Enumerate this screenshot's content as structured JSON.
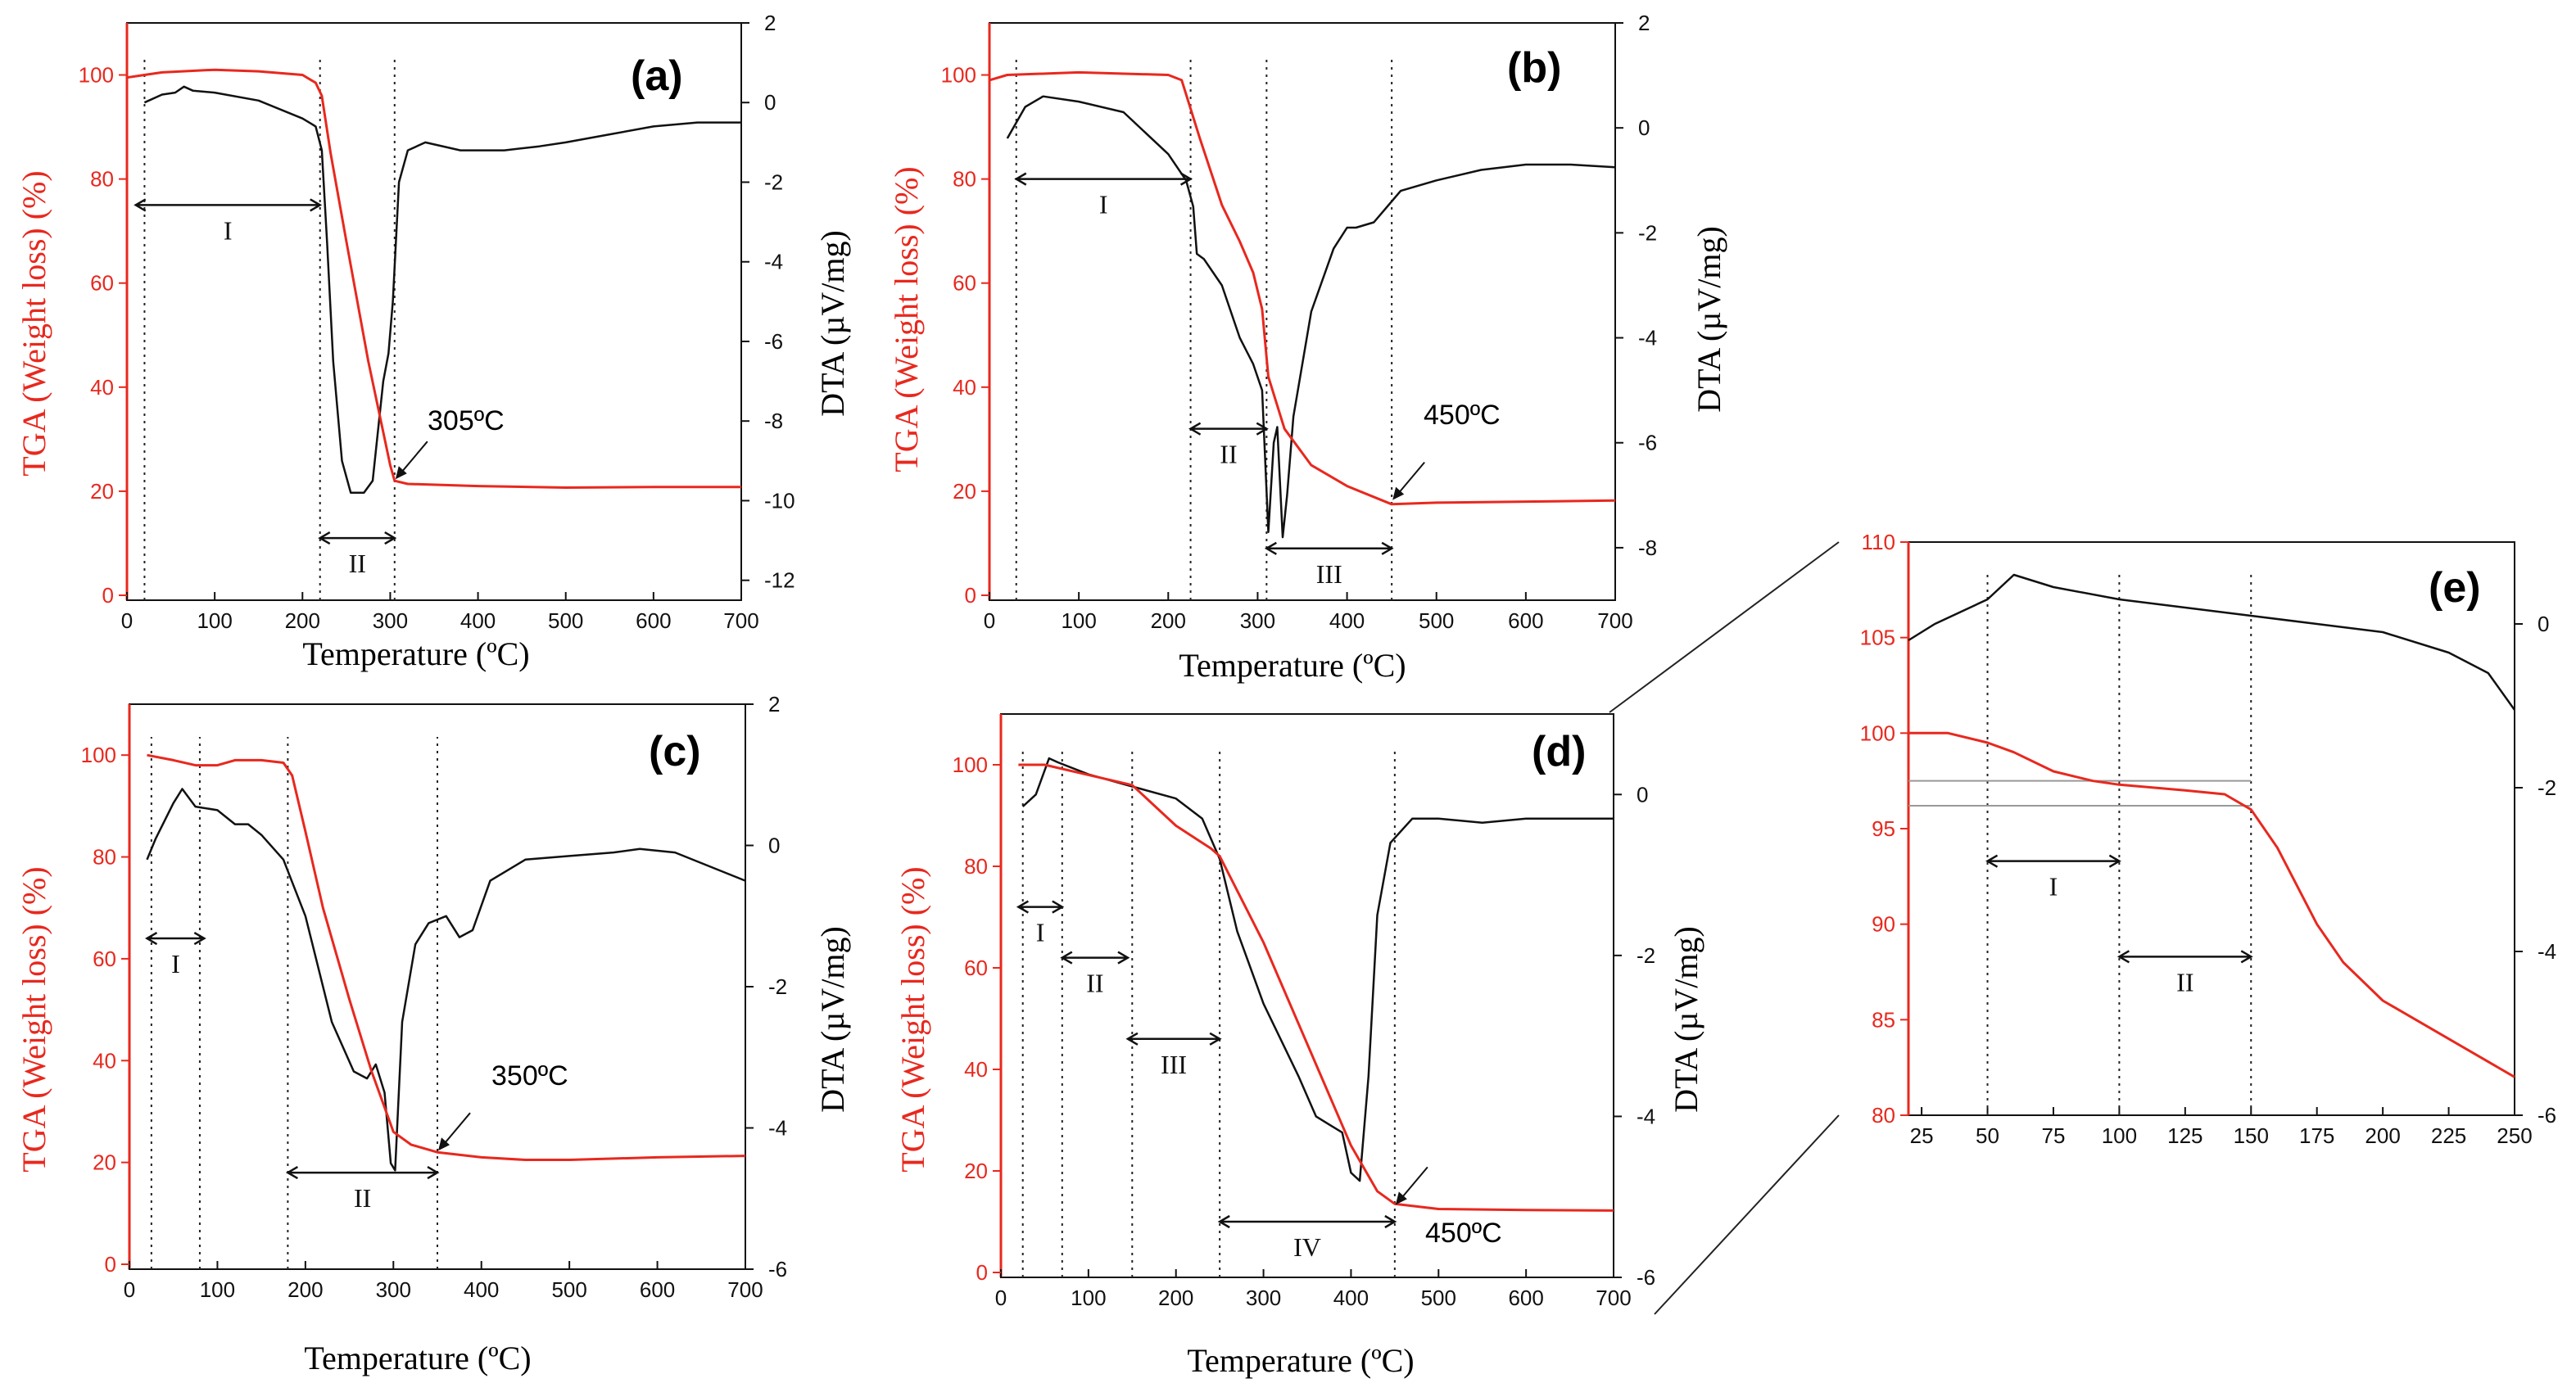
{
  "colors": {
    "tga": "#e8281e",
    "dta": "#111111",
    "guide": "#999999"
  },
  "chart_data": [
    {
      "id": "a",
      "type": "line",
      "label": "(a)",
      "xlabel": "Temperature (ºC)",
      "ylabel": "TGA (Weight loss) (%)",
      "y2label": "DTA (µV/mg)",
      "xlim": [
        0,
        700
      ],
      "ylim": [
        0,
        110
      ],
      "y2lim": [
        -12.5,
        2
      ],
      "xticks": [
        0,
        100,
        200,
        300,
        400,
        500,
        600,
        700
      ],
      "yticks": [
        0,
        20,
        40,
        60,
        80,
        100
      ],
      "y2ticks": [
        -12,
        -10,
        -8,
        -6,
        -4,
        -2,
        0,
        2
      ],
      "tga": [
        [
          0,
          99.5
        ],
        [
          20,
          100
        ],
        [
          40,
          100.5
        ],
        [
          100,
          101
        ],
        [
          150,
          100.7
        ],
        [
          200,
          100
        ],
        [
          215,
          98.5
        ],
        [
          222,
          96
        ],
        [
          232,
          85
        ],
        [
          250,
          68
        ],
        [
          275,
          45
        ],
        [
          300,
          25
        ],
        [
          305,
          22
        ],
        [
          320,
          21.4
        ],
        [
          400,
          21
        ],
        [
          500,
          20.7
        ],
        [
          600,
          20.8
        ],
        [
          700,
          20.8
        ]
      ],
      "dta": [
        [
          20,
          0
        ],
        [
          40,
          0.2
        ],
        [
          55,
          0.25
        ],
        [
          65,
          0.4
        ],
        [
          75,
          0.3
        ],
        [
          100,
          0.25
        ],
        [
          150,
          0.05
        ],
        [
          200,
          -0.4
        ],
        [
          215,
          -0.6
        ],
        [
          222,
          -1.2
        ],
        [
          228,
          -3.5
        ],
        [
          235,
          -6.5
        ],
        [
          245,
          -9
        ],
        [
          255,
          -9.8
        ],
        [
          270,
          -9.8
        ],
        [
          280,
          -9.5
        ],
        [
          292,
          -7
        ],
        [
          298,
          -6.3
        ],
        [
          303,
          -5
        ],
        [
          310,
          -2
        ],
        [
          320,
          -1.2
        ],
        [
          340,
          -1
        ],
        [
          380,
          -1.2
        ],
        [
          430,
          -1.2
        ],
        [
          470,
          -1.1
        ],
        [
          500,
          -1
        ],
        [
          550,
          -0.8
        ],
        [
          600,
          -0.6
        ],
        [
          650,
          -0.5
        ],
        [
          700,
          -0.5
        ]
      ],
      "guides": [
        20,
        220,
        305
      ],
      "regions": [
        {
          "label": "I",
          "from": 10,
          "to": 220,
          "y": 75
        },
        {
          "label": "II",
          "from": 220,
          "to": 305,
          "y": 11
        }
      ],
      "annotation": {
        "text": "305ºC",
        "at": [
          305,
          22
        ]
      }
    },
    {
      "id": "b",
      "type": "line",
      "label": "(b)",
      "xlabel": "Temperature (ºC)",
      "ylabel": "TGA (Weight loss) (%)",
      "y2label": "DTA (µV/mg)",
      "xlim": [
        0,
        700
      ],
      "ylim": [
        0,
        110
      ],
      "y2lim": [
        -9,
        2
      ],
      "xticks": [
        0,
        100,
        200,
        300,
        400,
        500,
        600,
        700
      ],
      "yticks": [
        0,
        20,
        40,
        60,
        80,
        100
      ],
      "y2ticks": [
        -8,
        -6,
        -4,
        -2,
        0,
        2
      ],
      "tga": [
        [
          0,
          99
        ],
        [
          20,
          100
        ],
        [
          100,
          100.5
        ],
        [
          200,
          100
        ],
        [
          215,
          99
        ],
        [
          235,
          88
        ],
        [
          260,
          75
        ],
        [
          280,
          68
        ],
        [
          295,
          62
        ],
        [
          305,
          55
        ],
        [
          312,
          42
        ],
        [
          330,
          32
        ],
        [
          360,
          25
        ],
        [
          400,
          21
        ],
        [
          450,
          17.5
        ],
        [
          500,
          17.8
        ],
        [
          600,
          18
        ],
        [
          700,
          18.2
        ]
      ],
      "dta": [
        [
          20,
          -0.2
        ],
        [
          40,
          0.4
        ],
        [
          60,
          0.6
        ],
        [
          100,
          0.5
        ],
        [
          150,
          0.3
        ],
        [
          200,
          -0.5
        ],
        [
          220,
          -1
        ],
        [
          228,
          -1.5
        ],
        [
          232,
          -2.4
        ],
        [
          240,
          -2.5
        ],
        [
          260,
          -3
        ],
        [
          280,
          -4
        ],
        [
          295,
          -4.5
        ],
        [
          305,
          -5
        ],
        [
          312,
          -7.7
        ],
        [
          318,
          -6
        ],
        [
          322,
          -5.7
        ],
        [
          328,
          -7.8
        ],
        [
          333,
          -7
        ],
        [
          340,
          -5.5
        ],
        [
          360,
          -3.5
        ],
        [
          385,
          -2.3
        ],
        [
          400,
          -1.9
        ],
        [
          410,
          -1.9
        ],
        [
          430,
          -1.8
        ],
        [
          460,
          -1.2
        ],
        [
          500,
          -1
        ],
        [
          550,
          -0.8
        ],
        [
          600,
          -0.7
        ],
        [
          650,
          -0.7
        ],
        [
          700,
          -0.75
        ]
      ],
      "guides": [
        30,
        225,
        310,
        450
      ],
      "regions": [
        {
          "label": "I",
          "from": 30,
          "to": 225,
          "y": 80
        },
        {
          "label": "II",
          "from": 225,
          "to": 310,
          "y": 32
        },
        {
          "label": "III",
          "from": 310,
          "to": 450,
          "y": 9
        }
      ],
      "annotation": {
        "text": "450ºC",
        "at": [
          450,
          18
        ]
      }
    },
    {
      "id": "c",
      "type": "line",
      "label": "(c)",
      "xlabel": "Temperature (ºC)",
      "ylabel": "TGA (Weight loss) (%)",
      "y2label": "DTA (µV/mg)",
      "xlim": [
        0,
        700
      ],
      "ylim": [
        0,
        110
      ],
      "y2lim": [
        -6,
        2
      ],
      "xticks": [
        0,
        100,
        200,
        300,
        400,
        500,
        600,
        700
      ],
      "yticks": [
        0,
        20,
        40,
        60,
        80,
        100
      ],
      "y2ticks": [
        -6,
        -4,
        -2,
        0,
        2
      ],
      "tga": [
        [
          20,
          100
        ],
        [
          50,
          99
        ],
        [
          75,
          98
        ],
        [
          100,
          98
        ],
        [
          120,
          99
        ],
        [
          150,
          99
        ],
        [
          175,
          98.5
        ],
        [
          185,
          96
        ],
        [
          200,
          85
        ],
        [
          220,
          70
        ],
        [
          250,
          52
        ],
        [
          275,
          38
        ],
        [
          300,
          26
        ],
        [
          320,
          23.5
        ],
        [
          350,
          22
        ],
        [
          400,
          21
        ],
        [
          450,
          20.5
        ],
        [
          500,
          20.5
        ],
        [
          600,
          21
        ],
        [
          700,
          21.3
        ]
      ],
      "dta": [
        [
          20,
          -0.2
        ],
        [
          30,
          0.1
        ],
        [
          50,
          0.6
        ],
        [
          60,
          0.8
        ],
        [
          75,
          0.55
        ],
        [
          100,
          0.5
        ],
        [
          120,
          0.3
        ],
        [
          135,
          0.3
        ],
        [
          150,
          0.15
        ],
        [
          175,
          -0.2
        ],
        [
          200,
          -1
        ],
        [
          230,
          -2.5
        ],
        [
          255,
          -3.2
        ],
        [
          270,
          -3.3
        ],
        [
          280,
          -3.1
        ],
        [
          290,
          -3.5
        ],
        [
          297,
          -4.5
        ],
        [
          302,
          -4.6
        ],
        [
          310,
          -2.5
        ],
        [
          325,
          -1.4
        ],
        [
          340,
          -1.1
        ],
        [
          360,
          -1
        ],
        [
          375,
          -1.3
        ],
        [
          390,
          -1.2
        ],
        [
          410,
          -0.5
        ],
        [
          450,
          -0.2
        ],
        [
          500,
          -0.15
        ],
        [
          550,
          -0.1
        ],
        [
          580,
          -0.05
        ],
        [
          620,
          -0.1
        ],
        [
          680,
          -0.4
        ],
        [
          700,
          -0.5
        ]
      ],
      "guides": [
        25,
        80,
        180,
        350
      ],
      "regions": [
        {
          "label": "I",
          "from": 20,
          "to": 85,
          "y": 64
        },
        {
          "label": "II",
          "from": 180,
          "to": 350,
          "y": 18
        }
      ],
      "annotation": {
        "text": "350ºC",
        "at": [
          350,
          22
        ]
      }
    },
    {
      "id": "d",
      "type": "line",
      "label": "(d)",
      "xlabel": "Temperature (ºC)",
      "ylabel": "TGA (Weight loss) (%)",
      "y2label": "DTA (µV/mg)",
      "xlim": [
        0,
        700
      ],
      "ylim": [
        0,
        110
      ],
      "y2lim": [
        -6,
        1
      ],
      "xticks": [
        0,
        100,
        200,
        300,
        400,
        500,
        600,
        700
      ],
      "yticks": [
        0,
        20,
        40,
        60,
        80,
        100
      ],
      "y2ticks": [
        -6,
        -4,
        -2,
        0
      ],
      "tga": [
        [
          20,
          100
        ],
        [
          50,
          100
        ],
        [
          100,
          98
        ],
        [
          150,
          96
        ],
        [
          175,
          92
        ],
        [
          200,
          88
        ],
        [
          240,
          83.5
        ],
        [
          250,
          82
        ],
        [
          300,
          65
        ],
        [
          350,
          45
        ],
        [
          400,
          25
        ],
        [
          430,
          16
        ],
        [
          450,
          13.5
        ],
        [
          500,
          12.5
        ],
        [
          600,
          12.3
        ],
        [
          700,
          12.2
        ]
      ],
      "dta": [
        [
          25,
          -0.15
        ],
        [
          40,
          0
        ],
        [
          55,
          0.45
        ],
        [
          65,
          0.4
        ],
        [
          100,
          0.25
        ],
        [
          150,
          0.1
        ],
        [
          200,
          -0.05
        ],
        [
          230,
          -0.3
        ],
        [
          250,
          -0.8
        ],
        [
          270,
          -1.7
        ],
        [
          300,
          -2.6
        ],
        [
          340,
          -3.5
        ],
        [
          360,
          -4
        ],
        [
          375,
          -4.1
        ],
        [
          390,
          -4.2
        ],
        [
          400,
          -4.7
        ],
        [
          410,
          -4.8
        ],
        [
          420,
          -3.5
        ],
        [
          430,
          -1.5
        ],
        [
          445,
          -0.6
        ],
        [
          470,
          -0.3
        ],
        [
          500,
          -0.3
        ],
        [
          550,
          -0.35
        ],
        [
          600,
          -0.3
        ],
        [
          650,
          -0.3
        ],
        [
          700,
          -0.3
        ]
      ],
      "guides": [
        25,
        70,
        150,
        250,
        450
      ],
      "regions": [
        {
          "label": "I",
          "from": 20,
          "to": 70,
          "y": 72
        },
        {
          "label": "II",
          "from": 70,
          "to": 145,
          "y": 62
        },
        {
          "label": "III",
          "from": 145,
          "to": 250,
          "y": 46
        },
        {
          "label": "IV",
          "from": 250,
          "to": 450,
          "y": 10
        }
      ],
      "annotation": {
        "text": "450ºC",
        "at": [
          450,
          13
        ]
      }
    },
    {
      "id": "e",
      "type": "line",
      "label": "(e)",
      "xlabel": "",
      "ylabel": "",
      "y2label": "",
      "xlim": [
        20,
        250
      ],
      "ylim": [
        80,
        110
      ],
      "y2lim": [
        -6,
        1
      ],
      "xticks": [
        25,
        50,
        75,
        100,
        125,
        150,
        175,
        200,
        225,
        250
      ],
      "yticks": [
        80,
        85,
        90,
        95,
        100,
        105,
        110
      ],
      "y2ticks": [
        -6,
        -4,
        -2,
        0
      ],
      "tga": [
        [
          20,
          100
        ],
        [
          35,
          100
        ],
        [
          50,
          99.5
        ],
        [
          60,
          99
        ],
        [
          75,
          98
        ],
        [
          90,
          97.5
        ],
        [
          100,
          97.3
        ],
        [
          125,
          97
        ],
        [
          140,
          96.8
        ],
        [
          150,
          96
        ],
        [
          160,
          94
        ],
        [
          175,
          90
        ],
        [
          185,
          88
        ],
        [
          200,
          86
        ],
        [
          225,
          84
        ],
        [
          250,
          82
        ]
      ],
      "dta": [
        [
          20,
          -0.2
        ],
        [
          30,
          0
        ],
        [
          50,
          0.3
        ],
        [
          60,
          0.6
        ],
        [
          75,
          0.45
        ],
        [
          100,
          0.3
        ],
        [
          125,
          0.2
        ],
        [
          150,
          0.1
        ],
        [
          175,
          0
        ],
        [
          200,
          -0.1
        ],
        [
          225,
          -0.35
        ],
        [
          240,
          -0.6
        ],
        [
          250,
          -1.05
        ]
      ],
      "guides": [
        50,
        100,
        150
      ],
      "hlines": [
        97.5,
        96.2
      ],
      "regions": [
        {
          "label": "I",
          "from": 50,
          "to": 100,
          "y": 93.3
        },
        {
          "label": "II",
          "from": 100,
          "to": 150,
          "y": 88.3
        }
      ]
    }
  ]
}
